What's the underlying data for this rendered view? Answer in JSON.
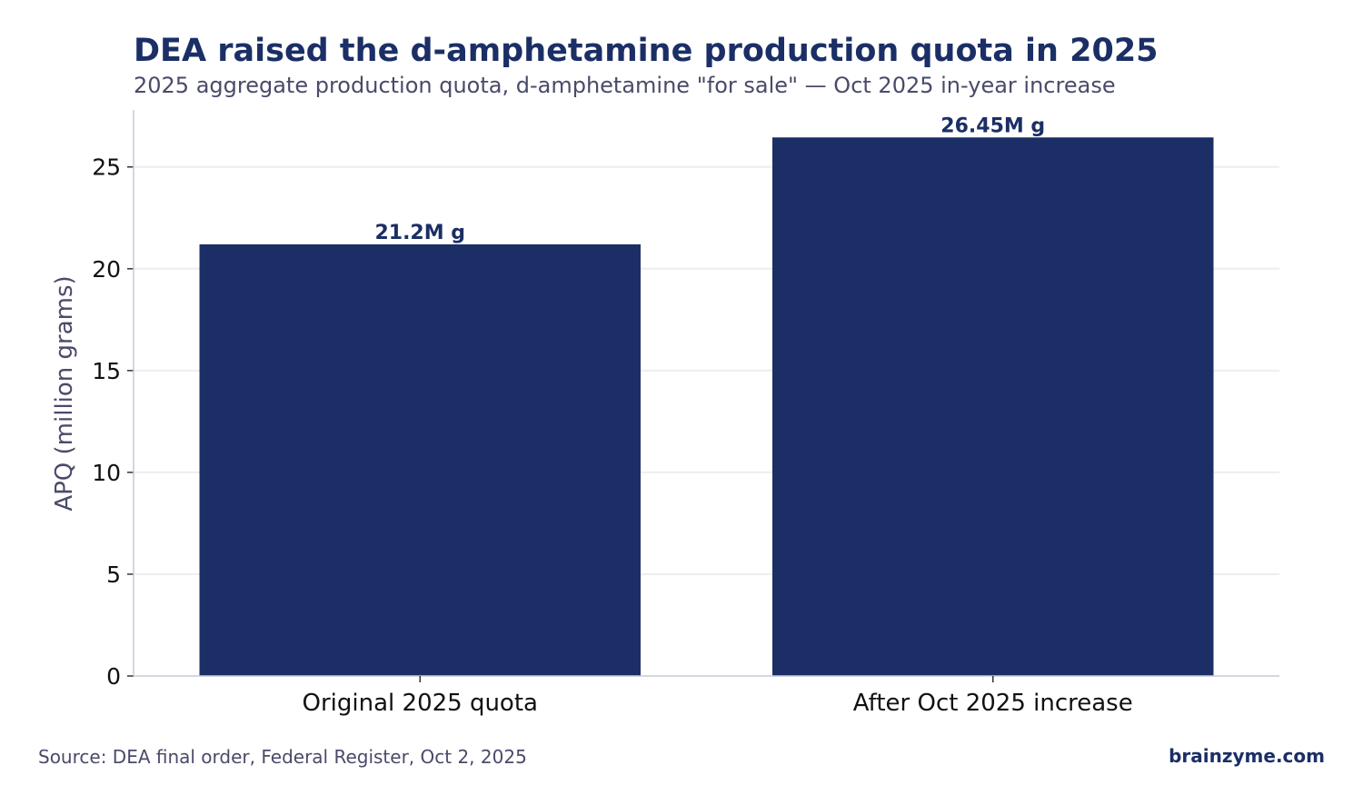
{
  "title": "DEA raised the d-amphetamine production quota in 2025",
  "subtitle": "2025 aggregate production quota, d-amphetamine \"for sale\" — Oct 2025 in-year increase",
  "source": "Source: DEA final order, Federal Register, Oct 2, 2025",
  "brand": "brainzyme.com",
  "colors": {
    "bar": "#1b2f66",
    "title": "#1b2f66",
    "muted": "#4a4a6a",
    "grid": "#eeeeee",
    "axis": "#c5cad8"
  },
  "chart_data": {
    "type": "bar",
    "title": "DEA raised the d-amphetamine production quota in 2025",
    "subtitle": "2025 aggregate production quota, d-amphetamine \"for sale\" — Oct 2025 in-year increase",
    "xlabel": "",
    "ylabel": "APQ (million grams)",
    "categories": [
      "Original 2025 quota",
      "After Oct 2025 increase"
    ],
    "values": [
      21.2,
      26.45
    ],
    "data_labels": [
      "21.2M g",
      "26.45M g"
    ],
    "ylim": [
      0,
      27.8
    ],
    "yticks": [
      0,
      5,
      10,
      15,
      20,
      25
    ],
    "grid": "horizontal",
    "legend": "none"
  }
}
